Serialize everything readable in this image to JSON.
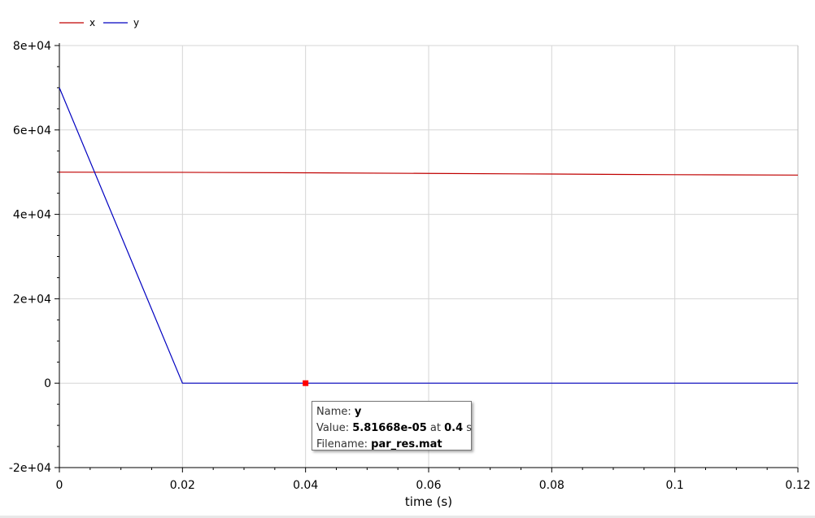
{
  "chart_data": {
    "type": "line",
    "xlabel": "time (s)",
    "ylabel": "",
    "xlim": [
      0,
      0.12
    ],
    "ylim": [
      -20000,
      80000
    ],
    "x_ticks": [
      "0",
      "0.02",
      "0.04",
      "0.06",
      "0.08",
      "0.1",
      "0.12"
    ],
    "x_tick_values": [
      0,
      0.02,
      0.04,
      0.06,
      0.08,
      0.1,
      0.12
    ],
    "y_ticks": [
      "-2e+04",
      "0",
      "2e+04",
      "4e+04",
      "6e+04",
      "8e+04"
    ],
    "y_tick_values": [
      -20000,
      0,
      20000,
      40000,
      60000,
      80000
    ],
    "grid": true,
    "legend_position": "top-left",
    "series": [
      {
        "name": "x",
        "color": "#c00000",
        "x": [
          0,
          0.02,
          0.04,
          0.06,
          0.08,
          0.1,
          0.12
        ],
        "y": [
          50000,
          49950,
          49850,
          49700,
          49550,
          49400,
          49300
        ]
      },
      {
        "name": "y",
        "color": "#0000c0",
        "x": [
          0,
          0.02,
          0.04,
          0.06,
          0.08,
          0.1,
          0.12
        ],
        "y": [
          70000,
          0,
          0,
          0,
          0,
          0,
          0
        ]
      }
    ],
    "marker": {
      "x": 0.04,
      "y": 0,
      "color": "#ff0000"
    }
  },
  "tooltip": {
    "name_label": "Name:",
    "name_value": "y",
    "value_label": "Value:",
    "value_value": "5.81668e-05",
    "at_label": "at",
    "at_value": "0.4",
    "unit": "s",
    "filename_label": "Filename:",
    "filename_value": "par_res.mat"
  }
}
